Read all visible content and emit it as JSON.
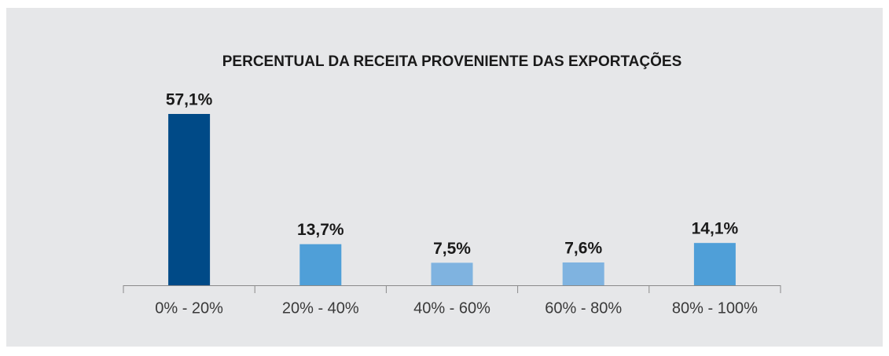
{
  "chart_data": {
    "type": "bar",
    "title": "PERCENTUAL DA RECEITA PROVENIENTE DAS EXPORTAÇÕES",
    "categories": [
      "0% - 20%",
      "20% - 40%",
      "40% - 60%",
      "60% - 80%",
      "80% - 100%"
    ],
    "values": [
      57.1,
      13.7,
      7.5,
      7.6,
      14.1
    ],
    "value_labels": [
      "57,1%",
      "13,7%",
      "7,5%",
      "7,6%",
      "14,1%"
    ],
    "colors": [
      "#004a87",
      "#4f9fd8",
      "#7fb3e0",
      "#7fb3e0",
      "#4f9fd8"
    ]
  }
}
